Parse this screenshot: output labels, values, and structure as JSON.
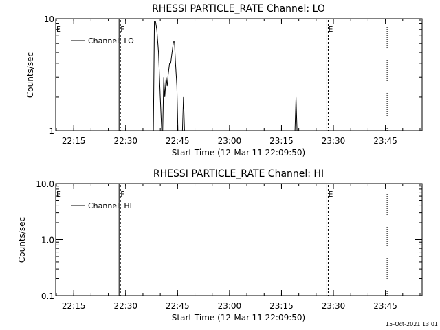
{
  "footer": {
    "timestamp": "15-Oct-2021 13:01"
  },
  "chart_data": [
    {
      "type": "line",
      "title": "RHESSI PARTICLE_RATE Channel: LO",
      "xlabel": "Start Time (12-Mar-11 22:09:50)",
      "ylabel": "Counts/sec",
      "yscale": "log",
      "ylim": [
        1,
        10
      ],
      "xlim_minutes": [
        22.17,
        23.93
      ],
      "xticks": [
        "22:15",
        "22:30",
        "22:45",
        "23:00",
        "23:15",
        "23:30",
        "23:45"
      ],
      "yticks": [
        "1",
        "10"
      ],
      "grid": false,
      "legend": "top-left",
      "series": [
        {
          "name": "Channel: LO",
          "color": "#000000",
          "x": [
            "22:37.6",
            "22:38.0",
            "22:38.3",
            "22:38.6",
            "22:39.0",
            "22:39.5",
            "22:40.0",
            "22:40.4",
            "22:40.7",
            "22:41.0",
            "22:41.3",
            "22:41.7",
            "22:42.0",
            "22:42.3",
            "22:42.7",
            "22:43.0",
            "22:43.4",
            "22:43.8",
            "22:44.1",
            "22:44.4",
            "22:44.8",
            "22:45.1",
            "22:45.6",
            "22:46.4",
            "22:46.7",
            "22:47.0",
            "22:47.3",
            "22:47.7",
            "23:18.9",
            "23:19.2",
            "23:19.5",
            "23:19.8"
          ],
          "y": [
            1.0,
            1.0,
            9.5,
            9.5,
            8.0,
            5.0,
            2.0,
            1.0,
            1.0,
            3.0,
            2.0,
            3.0,
            2.5,
            3.2,
            4.0,
            4.0,
            5.0,
            6.2,
            6.2,
            4.0,
            2.5,
            1.0,
            1.0,
            1.0,
            2.0,
            1.0,
            1.0,
            1.0,
            1.0,
            2.0,
            1.0,
            1.0
          ]
        }
      ],
      "annotations": [
        {
          "text": "E",
          "x": "22:09.8"
        },
        {
          "text": "F",
          "x": "22:28.3"
        },
        {
          "text": "E",
          "x": "23:28.3"
        }
      ],
      "vlines": [
        "22:28.3",
        "23:28.3",
        "23:45.5"
      ]
    },
    {
      "type": "line",
      "title": "RHESSI PARTICLE_RATE Channel: HI",
      "xlabel": "Start Time (12-Mar-11 22:09:50)",
      "ylabel": "Counts/sec",
      "yscale": "log",
      "ylim": [
        0.1,
        10.0
      ],
      "xticks": [
        "22:15",
        "22:30",
        "22:45",
        "23:00",
        "23:15",
        "23:30",
        "23:45"
      ],
      "yticks": [
        "0.1",
        "1.0",
        "10.0"
      ],
      "grid": false,
      "legend": "top-left",
      "series": [
        {
          "name": "Channel: HI",
          "color": "#000000",
          "x": [],
          "y": []
        }
      ],
      "annotations": [
        {
          "text": "E",
          "x": "22:09.8"
        },
        {
          "text": "F",
          "x": "22:28.3"
        },
        {
          "text": "E",
          "x": "23:28.3"
        }
      ],
      "vlines": [
        "22:28.3",
        "23:28.3",
        "23:45.5"
      ]
    }
  ]
}
